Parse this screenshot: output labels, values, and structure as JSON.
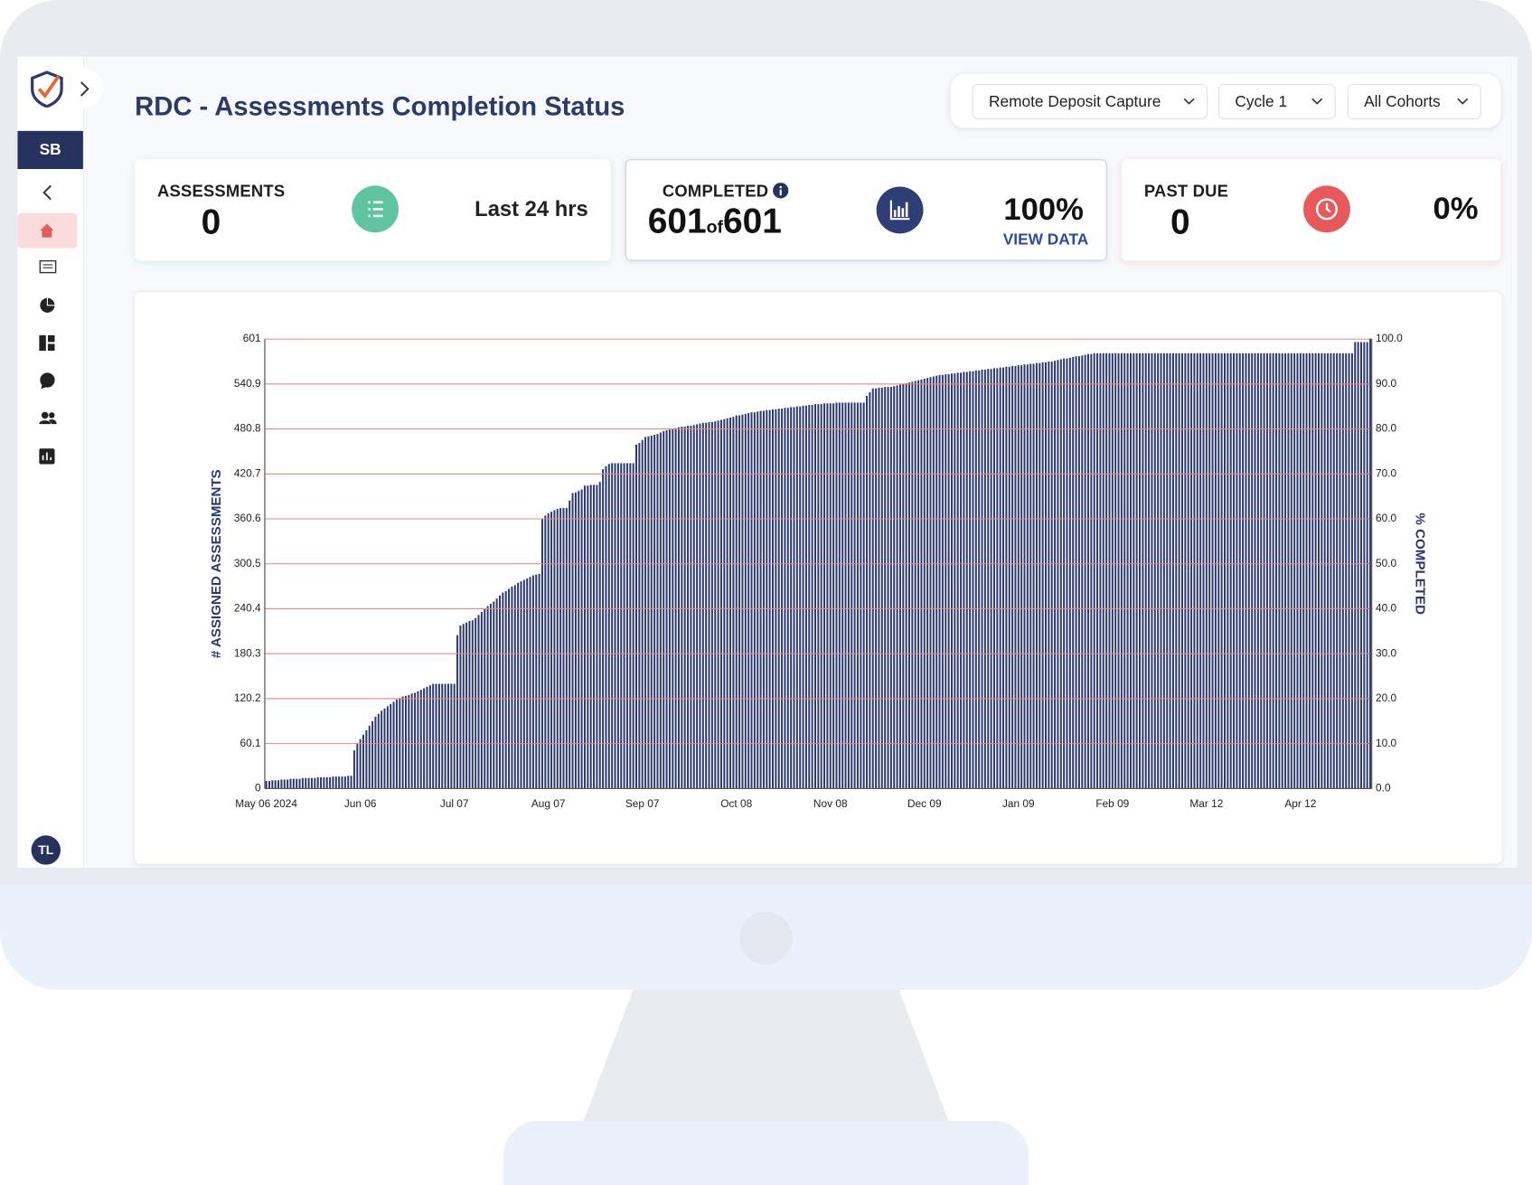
{
  "header": {
    "title": "RDC - Assessments Completion Status"
  },
  "filters": [
    "Remote Deposit Capture",
    "Cycle 1",
    "All Cohorts"
  ],
  "sidebar": {
    "initials": "SB",
    "user": "TL"
  },
  "cards": [
    {
      "label": "ASSESSMENTS",
      "value": "0",
      "note": "Last 24 hrs"
    },
    {
      "label": "COMPLETED",
      "value": "601",
      "of": "of",
      "total": "601",
      "percent": "100%",
      "link": "VIEW DATA"
    },
    {
      "label": "PAST DUE",
      "value": "0",
      "percent": "0%"
    }
  ],
  "chart_data": {
    "type": "bar",
    "color": "#2d3a6e",
    "grid": true,
    "grid_color": "#e98585",
    "ylabel": "# ASSIGNED ASSESSMENTS",
    "y2label": "% COMPLETED",
    "ylim": [
      0,
      601
    ],
    "yticks": [
      0,
      60.1,
      120.2,
      180.3,
      240.4,
      300.5,
      360.6,
      420.7,
      480.8,
      540.9,
      601
    ],
    "y2lim": [
      0,
      100
    ],
    "y2ticks": [
      {
        "value": 0,
        "label": "0.0"
      },
      {
        "value": 10,
        "label": "10.0"
      },
      {
        "value": 20,
        "label": "20.0"
      },
      {
        "value": 30,
        "label": "30.0"
      },
      {
        "value": 40,
        "label": "40.0"
      },
      {
        "value": 50,
        "label": "50.0"
      },
      {
        "value": 60,
        "label": "60.0"
      },
      {
        "value": 70,
        "label": "70.0"
      },
      {
        "value": 80,
        "label": "80.0"
      },
      {
        "value": 90,
        "label": "90.0"
      },
      {
        "value": 100,
        "label": "100.0"
      }
    ],
    "categories": [
      "May 06 2024",
      null,
      null,
      null,
      null,
      null,
      null,
      null,
      null,
      null,
      null,
      null,
      null,
      null,
      null,
      null,
      null,
      null,
      null,
      null,
      null,
      null,
      null,
      null,
      null,
      null,
      null,
      null,
      null,
      null,
      null,
      "Jun 06",
      null,
      null,
      null,
      null,
      null,
      null,
      null,
      null,
      null,
      null,
      null,
      null,
      null,
      null,
      null,
      null,
      null,
      null,
      null,
      null,
      null,
      null,
      null,
      null,
      null,
      null,
      null,
      null,
      null,
      null,
      "Jul 07",
      null,
      null,
      null,
      null,
      null,
      null,
      null,
      null,
      null,
      null,
      null,
      null,
      null,
      null,
      null,
      null,
      null,
      null,
      null,
      null,
      null,
      null,
      null,
      null,
      null,
      null,
      null,
      null,
      null,
      null,
      "Aug 07",
      null,
      null,
      null,
      null,
      null,
      null,
      null,
      null,
      null,
      null,
      null,
      null,
      null,
      null,
      null,
      null,
      null,
      null,
      null,
      null,
      null,
      null,
      null,
      null,
      null,
      null,
      null,
      null,
      null,
      null,
      "Sep 07",
      null,
      null,
      null,
      null,
      null,
      null,
      null,
      null,
      null,
      null,
      null,
      null,
      null,
      null,
      null,
      null,
      null,
      null,
      null,
      null,
      null,
      null,
      null,
      null,
      null,
      null,
      null,
      null,
      null,
      null,
      "Oct 08",
      null,
      null,
      null,
      null,
      null,
      null,
      null,
      null,
      null,
      null,
      null,
      null,
      null,
      null,
      null,
      null,
      null,
      null,
      null,
      null,
      null,
      null,
      null,
      null,
      null,
      null,
      null,
      null,
      null,
      null,
      "Nov 08",
      null,
      null,
      null,
      null,
      null,
      null,
      null,
      null,
      null,
      null,
      null,
      null,
      null,
      null,
      null,
      null,
      null,
      null,
      null,
      null,
      null,
      null,
      null,
      null,
      null,
      null,
      null,
      null,
      null,
      null,
      "Dec 09",
      null,
      null,
      null,
      null,
      null,
      null,
      null,
      null,
      null,
      null,
      null,
      null,
      null,
      null,
      null,
      null,
      null,
      null,
      null,
      null,
      null,
      null,
      null,
      null,
      null,
      null,
      null,
      null,
      null,
      null,
      "Jan 09",
      null,
      null,
      null,
      null,
      null,
      null,
      null,
      null,
      null,
      null,
      null,
      null,
      null,
      null,
      null,
      null,
      null,
      null,
      null,
      null,
      null,
      null,
      null,
      null,
      null,
      null,
      null,
      null,
      null,
      null,
      "Feb 09",
      null,
      null,
      null,
      null,
      null,
      null,
      null,
      null,
      null,
      null,
      null,
      null,
      null,
      null,
      null,
      null,
      null,
      null,
      null,
      null,
      null,
      null,
      null,
      null,
      null,
      null,
      null,
      null,
      null,
      null,
      "Mar 12",
      null,
      null,
      null,
      null,
      null,
      null,
      null,
      null,
      null,
      null,
      null,
      null,
      null,
      null,
      null,
      null,
      null,
      null,
      null,
      null,
      null,
      null,
      null,
      null,
      null,
      null,
      null,
      null,
      null,
      null,
      "Apr 12",
      null,
      null,
      null,
      null,
      null,
      null,
      null,
      null,
      null,
      null,
      null,
      null,
      null,
      null,
      null,
      null,
      null,
      null,
      null,
      null,
      null,
      null,
      null
    ],
    "values": [
      10,
      10,
      11,
      11,
      11,
      12,
      12,
      12,
      13,
      13,
      13,
      13,
      14,
      14,
      14,
      14,
      14,
      15,
      15,
      15,
      15,
      15,
      16,
      16,
      16,
      16,
      16,
      17,
      17,
      51,
      60,
      66,
      72,
      78,
      84,
      90,
      96,
      100,
      104,
      107,
      110,
      113,
      116,
      119,
      121,
      123,
      124,
      125,
      127,
      128,
      130,
      132,
      134,
      136,
      138,
      140,
      140,
      140,
      140,
      140,
      140,
      140,
      140,
      205,
      218,
      220,
      222,
      224,
      225,
      228,
      232,
      236,
      240,
      244,
      247,
      250,
      254,
      258,
      262,
      264,
      267,
      270,
      272,
      275,
      277,
      279,
      281,
      283,
      285,
      286,
      287,
      360,
      365,
      368,
      370,
      372,
      374,
      375,
      375,
      375,
      385,
      395,
      396,
      398,
      400,
      405,
      405,
      406,
      406,
      406,
      410,
      427,
      431,
      434,
      435,
      435,
      435,
      435,
      435,
      435,
      435,
      435,
      460,
      462,
      466,
      470,
      471,
      472,
      473,
      474,
      476,
      478,
      479,
      480,
      481,
      482,
      483,
      484,
      484,
      485,
      485,
      486,
      487,
      488,
      489,
      489,
      490,
      490,
      491,
      492,
      493,
      494,
      495,
      496,
      497,
      499,
      499,
      500,
      501,
      502,
      503,
      503,
      504,
      505,
      505,
      506,
      506,
      507,
      507,
      508,
      508,
      509,
      509,
      510,
      510,
      511,
      511,
      512,
      512,
      513,
      513,
      514,
      514,
      514,
      515,
      515,
      515,
      515,
      516,
      516,
      516,
      516,
      516,
      516,
      516,
      516,
      516,
      516,
      525,
      530,
      535,
      535,
      536,
      536,
      537,
      537,
      537,
      538,
      539,
      540,
      541,
      542,
      543,
      544,
      545,
      546,
      547,
      548,
      549,
      550,
      551,
      552,
      553,
      553,
      554,
      554,
      555,
      555,
      556,
      556,
      557,
      557,
      558,
      558,
      559,
      559,
      560,
      560,
      561,
      561,
      562,
      562,
      563,
      563,
      564,
      564,
      565,
      565,
      566,
      566,
      567,
      567,
      568,
      568,
      569,
      569,
      570,
      570,
      571,
      571,
      572,
      573,
      574,
      575,
      575,
      576,
      577,
      578,
      578,
      579,
      580,
      581,
      581,
      582,
      582,
      582,
      582,
      582,
      582,
      582,
      582,
      582,
      582,
      582,
      582,
      582,
      582,
      582,
      582,
      582,
      582,
      582,
      582,
      582,
      582,
      582,
      582,
      582,
      582,
      582,
      582,
      582,
      582,
      582,
      582,
      582,
      582,
      582,
      582,
      582,
      582,
      582,
      582,
      582,
      582,
      582,
      582,
      582,
      582,
      582,
      582,
      582,
      582,
      582,
      582,
      582,
      582,
      582,
      582,
      582,
      582,
      582,
      582,
      582,
      582,
      582,
      582,
      582,
      582,
      582,
      582,
      582,
      582,
      582,
      582,
      582,
      582,
      582,
      582,
      582,
      582,
      582,
      582,
      582,
      582,
      582,
      582,
      582,
      582,
      597,
      597,
      597,
      597,
      597,
      601
    ]
  }
}
